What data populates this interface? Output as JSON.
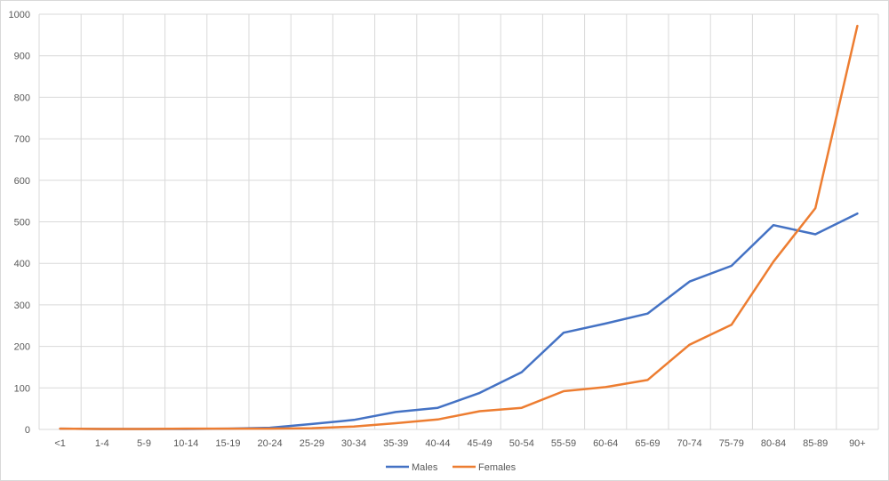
{
  "chart_data": {
    "type": "line",
    "title": "",
    "xlabel": "",
    "ylabel": "",
    "categories": [
      "<1",
      "1-4",
      "5-9",
      "10-14",
      "15-19",
      "20-24",
      "25-29",
      "30-34",
      "35-39",
      "40-44",
      "45-49",
      "50-54",
      "55-59",
      "60-64",
      "65-69",
      "70-74",
      "75-79",
      "80-84",
      "85-89",
      "90+"
    ],
    "series": [
      {
        "name": "Males",
        "color": "#4472C4",
        "values": [
          2,
          1,
          1,
          1,
          2,
          4,
          13,
          23,
          42,
          52,
          88,
          138,
          233,
          255,
          279,
          356,
          394,
          492,
          470,
          520
        ]
      },
      {
        "name": "Females",
        "color": "#ED7D31",
        "values": [
          2,
          1,
          1,
          2,
          2,
          2,
          3,
          7,
          15,
          24,
          44,
          52,
          92,
          102,
          119,
          204,
          252,
          404,
          533,
          972
        ]
      }
    ],
    "ylim": [
      0,
      1000
    ],
    "yticks": [
      0,
      100,
      200,
      300,
      400,
      500,
      600,
      700,
      800,
      900,
      1000
    ],
    "grid": true,
    "legend_position": "bottom"
  }
}
